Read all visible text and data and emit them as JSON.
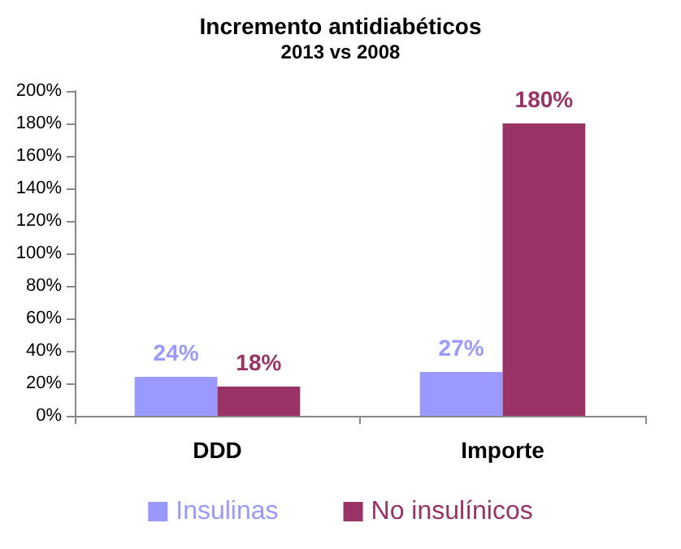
{
  "chart_data": {
    "type": "bar",
    "title": "Incremento antidiabéticos",
    "subtitle": "2013 vs 2008",
    "categories": [
      "DDD",
      "Importe"
    ],
    "series": [
      {
        "name": "Insulinas",
        "color": "#9999ff",
        "values": [
          24,
          27
        ],
        "value_labels": [
          "24%",
          "27%"
        ]
      },
      {
        "name": "No insulínicos",
        "color": "#993366",
        "values": [
          18,
          180
        ],
        "value_labels": [
          "18%",
          "180%"
        ]
      }
    ],
    "ylim": [
      0,
      200
    ],
    "yticks": [
      {
        "value": 0,
        "label": "0%"
      },
      {
        "value": 20,
        "label": "20%"
      },
      {
        "value": 40,
        "label": "40%"
      },
      {
        "value": 60,
        "label": "60%"
      },
      {
        "value": 80,
        "label": "80%"
      },
      {
        "value": 100,
        "label": "100%"
      },
      {
        "value": 120,
        "label": "120%"
      },
      {
        "value": 140,
        "label": "140%"
      },
      {
        "value": 160,
        "label": "160%"
      },
      {
        "value": 180,
        "label": "180%"
      },
      {
        "value": 200,
        "label": "200%"
      }
    ],
    "grid": false,
    "legend": "bottom"
  }
}
